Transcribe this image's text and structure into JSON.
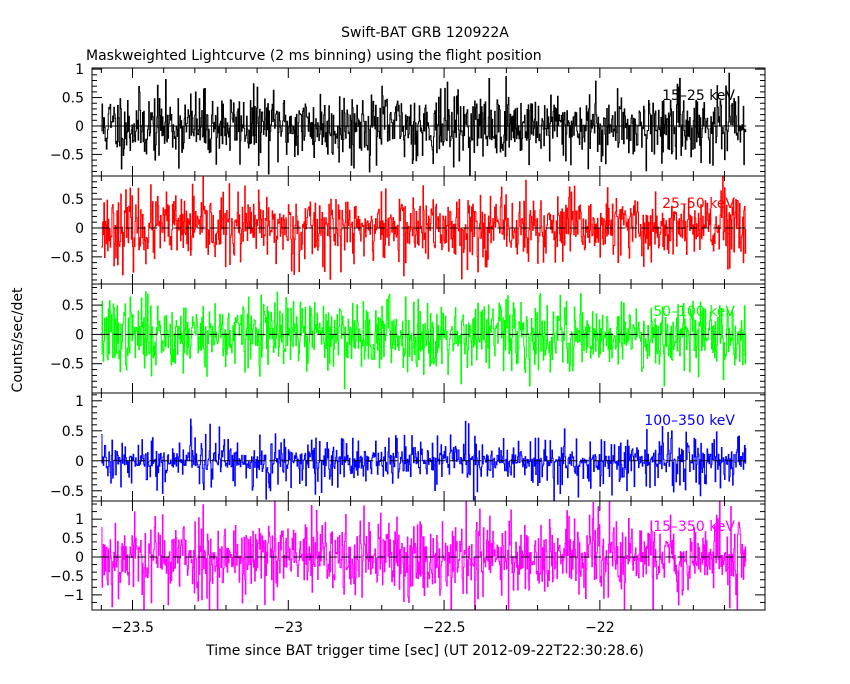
{
  "chart_data": {
    "type": "line",
    "title": "Swift-BAT GRB 120922A",
    "subtitle": "Maskweighted Lightcurve (2 ms binning) using the flight position",
    "xlabel": "Time since BAT trigger time [sec] (UT 2012-09-22T22:30:28.6)",
    "ylabel": "Counts/sec/det",
    "xlim": [
      -23.63,
      -21.47
    ],
    "x_ticks": [
      -23.5,
      -23,
      -22.5,
      -22
    ],
    "x_tick_labels": [
      "−23.5",
      "−23",
      "−22.5",
      "−22"
    ],
    "bin_size_sec": 0.002,
    "t_start": -23.6,
    "t_end": -21.53,
    "grid": false,
    "panels": [
      {
        "label": "15–25 keV",
        "color": "#000000",
        "ylim": [
          -0.88,
          1.02
        ],
        "y_ticks": [
          -0.5,
          0,
          0.5,
          1
        ],
        "y_tick_labels": [
          "−0.5",
          "0",
          "0.5",
          "1"
        ],
        "mean": 0,
        "std": 0.3,
        "seed": 11
      },
      {
        "label": "25–50 keV",
        "color": "#ff0000",
        "ylim": [
          -0.97,
          0.9
        ],
        "y_ticks": [
          -0.5,
          0,
          0.5
        ],
        "y_tick_labels": [
          "−0.5",
          "0",
          "0.5"
        ],
        "mean": 0,
        "std": 0.3,
        "seed": 23
      },
      {
        "label": "50–100 keV",
        "color": "#00ff00",
        "ylim": [
          -1.0,
          0.86
        ],
        "y_ticks": [
          -0.5,
          0,
          0.5
        ],
        "y_tick_labels": [
          "−0.5",
          "0",
          "0.5"
        ],
        "mean": 0,
        "std": 0.3,
        "seed": 37
      },
      {
        "label": "100–350 keV",
        "color": "#0000ff",
        "ylim": [
          -0.67,
          1.13
        ],
        "y_ticks": [
          -0.5,
          0,
          0.5,
          1
        ],
        "y_tick_labels": [
          "−0.5",
          "0",
          "0.5",
          "1"
        ],
        "mean": 0,
        "std": 0.22,
        "seed": 41
      },
      {
        "label": "15–350 keV",
        "color": "#ff00ff",
        "ylim": [
          -1.4,
          1.48
        ],
        "y_ticks": [
          -1,
          -0.5,
          0,
          0.5,
          1
        ],
        "y_tick_labels": [
          "−1",
          "−0.5",
          "0",
          "0.5",
          "1"
        ],
        "mean": 0,
        "std": 0.55,
        "seed": 53
      }
    ]
  }
}
